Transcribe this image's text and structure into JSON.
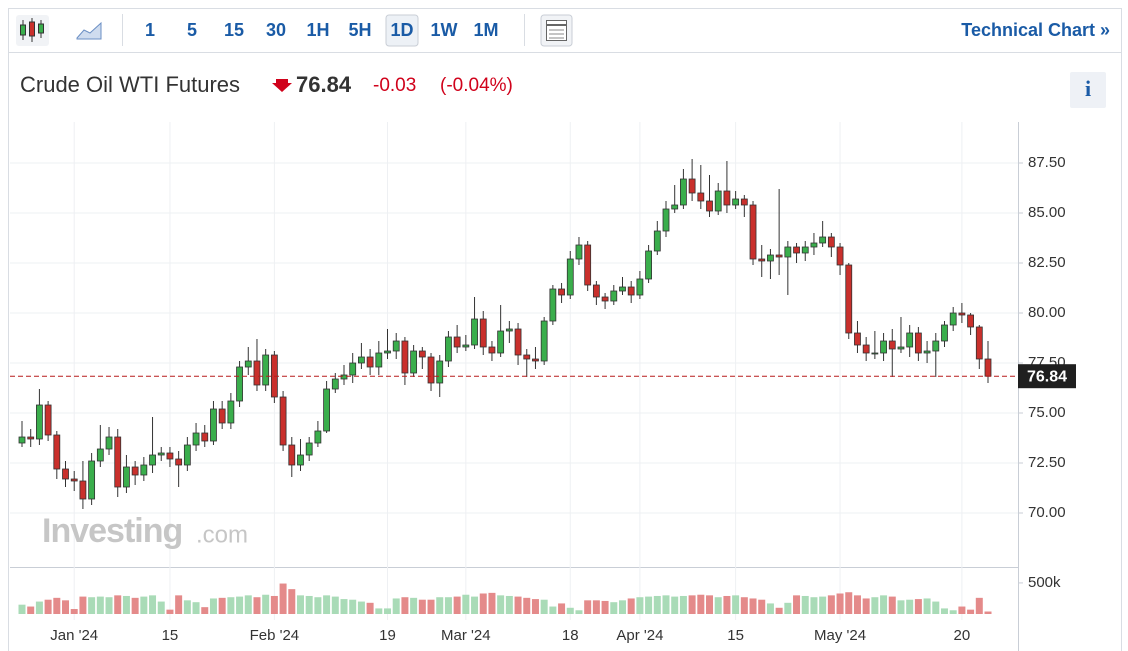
{
  "toolbar": {
    "intervals": [
      "1",
      "5",
      "15",
      "30",
      "1H",
      "5H",
      "1D",
      "1W",
      "1M"
    ],
    "selected_interval": "1D",
    "link": "Technical Chart »"
  },
  "header": {
    "title": "Crude Oil WTI Futures",
    "change": "-0.03",
    "change_pct": "(-0.04%)",
    "info": "i"
  },
  "chart_data": {
    "type": "candlestick",
    "watermark": "Investing",
    "watermark_suffix": ".com",
    "categories": [
      null,
      null,
      null,
      null,
      null,
      null,
      "Jan '24",
      null,
      null,
      null,
      null,
      null,
      null,
      null,
      null,
      null,
      null,
      "15",
      null,
      null,
      null,
      null,
      null,
      null,
      null,
      null,
      null,
      null,
      null,
      "Feb '24",
      null,
      null,
      null,
      null,
      null,
      null,
      null,
      null,
      null,
      null,
      null,
      null,
      "19",
      null,
      null,
      null,
      null,
      null,
      null,
      null,
      null,
      "Mar '24",
      null,
      null,
      null,
      null,
      null,
      null,
      null,
      null,
      null,
      null,
      null,
      "18",
      null,
      null,
      null,
      null,
      null,
      null,
      null,
      "Apr '24",
      null,
      null,
      null,
      null,
      null,
      null,
      null,
      null,
      null,
      null,
      "15",
      null,
      null,
      null,
      null,
      null,
      null,
      null,
      null,
      null,
      null,
      null,
      "May '24",
      null,
      null,
      null,
      null,
      null,
      null,
      null,
      null,
      null,
      null,
      null,
      null,
      null,
      "20",
      null,
      null,
      null
    ],
    "open": [
      73.5,
      73.8,
      73.7,
      75.4,
      73.9,
      72.2,
      71.7,
      71.6,
      70.7,
      72.6,
      73.2,
      73.8,
      71.3,
      72.3,
      71.9,
      72.4,
      72.9,
      73.0,
      72.7,
      72.4,
      73.4,
      74.0,
      73.6,
      75.2,
      74.5,
      75.6,
      77.3,
      77.6,
      76.4,
      77.9,
      75.8,
      73.4,
      72.4,
      72.9,
      73.5,
      74.1,
      76.2,
      76.7,
      76.9,
      77.5,
      77.8,
      77.3,
      78.0,
      78.1,
      78.6,
      77.0,
      78.1,
      77.8,
      76.5,
      77.6,
      78.8,
      78.3,
      78.4,
      79.7,
      78.3,
      78.0,
      79.1,
      79.2,
      77.9,
      77.7,
      77.6,
      79.6,
      81.2,
      80.9,
      82.7,
      83.4,
      81.4,
      80.8,
      80.6,
      81.1,
      81.3,
      80.9,
      81.7,
      83.1,
      84.1,
      85.2,
      85.4,
      86.7,
      86.0,
      85.6,
      85.1,
      86.1,
      85.4,
      85.7,
      85.4,
      82.7,
      82.6,
      82.9,
      82.8,
      83.3,
      83.0,
      83.3,
      83.5,
      83.8,
      83.3,
      82.4,
      79.0,
      78.4,
      78.0,
      78.0,
      78.6,
      78.2,
      78.3,
      79.0,
      78.0,
      78.1,
      78.6,
      79.4,
      80.0,
      79.9,
      79.3,
      77.7
    ],
    "high": [
      74.6,
      74.2,
      76.2,
      75.6,
      74.1,
      72.6,
      72.1,
      72.6,
      73.0,
      74.4,
      74.3,
      74.2,
      72.9,
      72.6,
      72.8,
      74.8,
      73.3,
      73.3,
      73.1,
      73.8,
      74.5,
      74.4,
      75.6,
      75.6,
      76.0,
      77.6,
      78.3,
      78.7,
      78.2,
      78.1,
      76.1,
      73.8,
      73.7,
      73.8,
      74.6,
      76.6,
      77.0,
      77.4,
      78.0,
      78.5,
      78.2,
      78.6,
      79.2,
      79.0,
      78.8,
      78.4,
      78.3,
      78.0,
      77.9,
      79.1,
      79.4,
      78.9,
      80.8,
      80.1,
      78.6,
      80.4,
      79.6,
      79.5,
      78.2,
      78.3,
      79.8,
      81.4,
      81.5,
      83.1,
      83.8,
      83.6,
      81.6,
      81.0,
      81.4,
      81.8,
      81.6,
      82.1,
      83.4,
      84.6,
      85.6,
      86.4,
      87.2,
      87.7,
      87.4,
      86.9,
      86.5,
      87.6,
      86.1,
      85.9,
      85.6,
      83.4,
      83.2,
      86.2,
      83.6,
      83.5,
      83.6,
      84.0,
      84.6,
      84.0,
      83.5,
      82.5,
      79.6,
      78.8,
      79.1,
      79.0,
      79.2,
      79.8,
      79.4,
      79.3,
      78.6,
      79.0,
      79.6,
      80.3,
      80.5,
      80.0,
      79.4,
      78.6
    ],
    "low": [
      73.3,
      73.3,
      73.4,
      73.6,
      71.7,
      71.3,
      71.1,
      70.2,
      70.4,
      72.3,
      72.9,
      70.8,
      71.0,
      71.4,
      71.6,
      72.0,
      72.6,
      72.3,
      71.3,
      72.1,
      73.1,
      73.3,
      73.4,
      74.2,
      74.2,
      75.3,
      76.9,
      76.1,
      76.1,
      75.5,
      73.1,
      71.8,
      72.1,
      72.6,
      73.3,
      74.0,
      76.0,
      76.4,
      76.5,
      77.2,
      76.9,
      76.9,
      77.7,
      77.7,
      76.4,
      76.8,
      77.2,
      76.1,
      75.8,
      77.3,
      78.0,
      78.1,
      78.2,
      77.9,
      77.6,
      77.8,
      78.5,
      77.4,
      76.8,
      77.2,
      77.4,
      79.4,
      80.5,
      80.7,
      82.4,
      81.1,
      80.4,
      80.2,
      80.4,
      80.9,
      80.5,
      80.7,
      81.5,
      82.9,
      83.8,
      85.0,
      85.2,
      85.6,
      85.2,
      84.8,
      84.9,
      85.0,
      85.2,
      84.8,
      82.4,
      81.8,
      81.7,
      81.9,
      80.9,
      82.5,
      82.6,
      82.9,
      83.3,
      82.8,
      81.9,
      78.7,
      78.0,
      77.6,
      77.7,
      77.6,
      76.8,
      78.0,
      77.8,
      77.6,
      77.5,
      76.8,
      78.3,
      79.1,
      79.5,
      78.9,
      77.2,
      76.5
    ],
    "close": [
      73.8,
      73.7,
      75.4,
      73.9,
      72.2,
      71.7,
      71.6,
      70.7,
      72.6,
      73.2,
      73.8,
      71.3,
      72.3,
      71.9,
      72.4,
      72.9,
      73.0,
      72.7,
      72.4,
      73.4,
      74.0,
      73.6,
      75.2,
      74.5,
      75.6,
      77.3,
      77.6,
      76.4,
      77.9,
      75.8,
      73.4,
      72.4,
      72.9,
      73.5,
      74.1,
      76.2,
      76.7,
      76.9,
      77.5,
      77.8,
      77.3,
      78.0,
      78.1,
      78.6,
      77.0,
      78.1,
      77.8,
      76.5,
      77.6,
      78.8,
      78.3,
      78.4,
      79.7,
      78.3,
      78.0,
      79.1,
      79.2,
      77.9,
      77.7,
      77.6,
      79.6,
      81.2,
      80.9,
      82.7,
      83.4,
      81.4,
      80.8,
      80.6,
      81.1,
      81.3,
      80.9,
      81.7,
      83.1,
      84.1,
      85.2,
      85.4,
      86.7,
      86.0,
      85.6,
      85.1,
      86.1,
      85.4,
      85.7,
      85.4,
      82.7,
      82.6,
      82.9,
      82.8,
      83.3,
      83.0,
      83.3,
      83.5,
      83.8,
      83.3,
      82.4,
      79.0,
      78.4,
      78.0,
      78.0,
      78.6,
      78.2,
      78.3,
      79.0,
      78.0,
      78.1,
      78.6,
      79.4,
      80.0,
      79.9,
      79.3,
      77.7,
      76.84
    ],
    "volume": [
      150000,
      120000,
      200000,
      230000,
      260000,
      220000,
      80000,
      280000,
      270000,
      280000,
      270000,
      300000,
      290000,
      260000,
      280000,
      300000,
      200000,
      70000,
      300000,
      220000,
      190000,
      110000,
      250000,
      260000,
      270000,
      280000,
      300000,
      270000,
      310000,
      290000,
      490000,
      400000,
      300000,
      290000,
      270000,
      300000,
      280000,
      240000,
      230000,
      200000,
      180000,
      90000,
      90000,
      250000,
      270000,
      260000,
      230000,
      230000,
      270000,
      270000,
      280000,
      310000,
      280000,
      330000,
      340000,
      300000,
      290000,
      280000,
      260000,
      240000,
      230000,
      120000,
      170000,
      100000,
      60000,
      220000,
      220000,
      210000,
      190000,
      220000,
      250000,
      270000,
      280000,
      290000,
      300000,
      280000,
      290000,
      300000,
      310000,
      300000,
      270000,
      290000,
      300000,
      270000,
      250000,
      230000,
      170000,
      100000,
      180000,
      300000,
      290000,
      270000,
      280000,
      300000,
      330000,
      350000,
      300000,
      250000,
      270000,
      300000,
      280000,
      220000,
      230000,
      240000,
      250000,
      200000,
      90000,
      60000,
      120000,
      70000,
      260000,
      40000
    ],
    "last_price": 76.84,
    "ylim": [
      67.4,
      89.55
    ],
    "yticks": [
      {
        "value": 70,
        "label": "70.00"
      },
      {
        "value": 72.5,
        "label": "72.50"
      },
      {
        "value": 75,
        "label": "75.00"
      },
      {
        "value": 77.5,
        "label": "77.50"
      },
      {
        "value": 80,
        "label": "80.00"
      },
      {
        "value": 82.5,
        "label": "82.50"
      },
      {
        "value": 85,
        "label": "85.00"
      },
      {
        "value": 87.5,
        "label": "87.50"
      }
    ],
    "volume_lim": [
      0,
      740000
    ],
    "volume_ticks": [
      {
        "value": 500000,
        "label": "500k"
      }
    ],
    "grid": true,
    "up_color": "#3aae4c",
    "down_color": "#c9302c",
    "volume_up_color": "#a9dbb7",
    "volume_down_color": "#e48a8a",
    "price_line_color": "#b71c1c"
  }
}
